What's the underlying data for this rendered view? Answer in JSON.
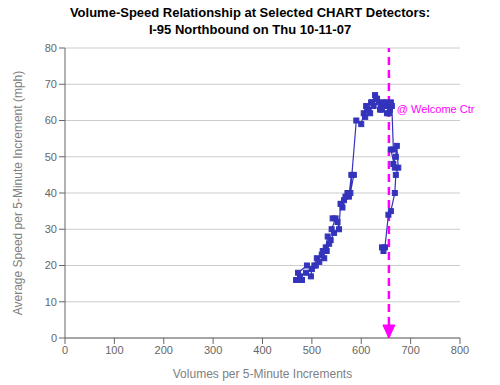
{
  "chart_data": {
    "type": "line",
    "title": "Volume-Speed Relationship at Selected CHART Detectors:",
    "subtitle": "I-95 Northbound on Thu 10-11-07",
    "xlabel": "Volumes per 5-Minute Increments",
    "ylabel": "Average Speed per 5-Minute Increment (mph)",
    "xlim": [
      0,
      800
    ],
    "ylim": [
      0,
      80
    ],
    "xticks": [
      0,
      100,
      200,
      300,
      400,
      500,
      600,
      700,
      800
    ],
    "yticks": [
      0,
      10,
      20,
      30,
      40,
      50,
      60,
      70,
      80
    ],
    "grid": "y",
    "color": "#3333BB",
    "marker": "square",
    "x": [
      468,
      476,
      480,
      472,
      490,
      500,
      498,
      488,
      505,
      510,
      515,
      508,
      520,
      525,
      522,
      530,
      535,
      528,
      532,
      538,
      545,
      540,
      548,
      542,
      552,
      555,
      558,
      562,
      565,
      560,
      568,
      572,
      575,
      580,
      585,
      578,
      590,
      600,
      605,
      608,
      610,
      615,
      618,
      612,
      620,
      625,
      622,
      628,
      632,
      630,
      635,
      638,
      640,
      645,
      648,
      642,
      650,
      655,
      652,
      658,
      660,
      656,
      662,
      665,
      660,
      668,
      665,
      670,
      672,
      675,
      670,
      668,
      660,
      655,
      648,
      645,
      642
    ],
    "values": [
      16,
      17,
      16,
      18,
      20,
      19,
      17,
      18,
      20,
      22,
      21,
      20,
      23,
      22,
      24,
      24,
      26,
      25,
      28,
      27,
      29,
      30,
      33,
      33,
      32,
      30,
      37,
      36,
      38,
      37,
      39,
      40,
      39,
      45,
      45,
      40,
      60,
      59,
      62,
      61,
      64,
      63,
      62,
      63,
      65,
      64,
      65,
      67,
      66,
      66,
      65,
      63,
      64,
      65,
      64,
      63,
      65,
      64,
      62,
      63,
      65,
      62,
      64,
      52,
      52,
      47,
      48,
      50,
      53,
      47,
      45,
      40,
      35,
      34,
      25,
      24,
      25
    ],
    "vline": {
      "x": 656,
      "color": "#FF00FF",
      "line_style": "dashed",
      "marker": "arrow_down"
    },
    "annotations": [
      {
        "text": "@ Welcome Ctr",
        "x": 672,
        "y": 62,
        "color": "#FF00FF"
      }
    ]
  }
}
